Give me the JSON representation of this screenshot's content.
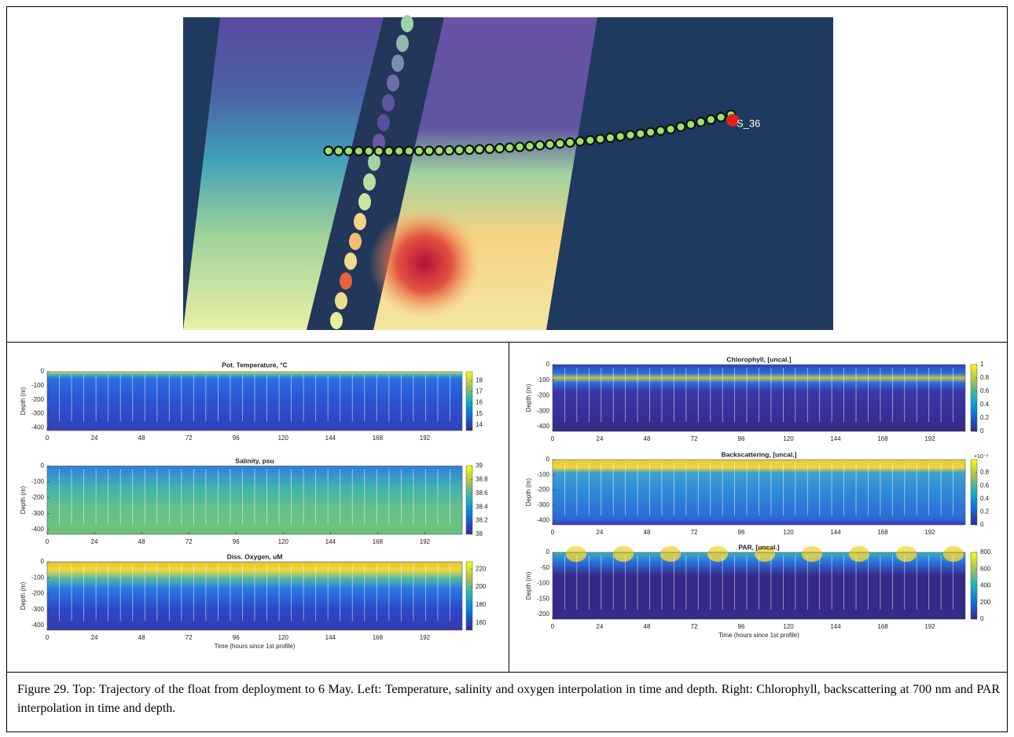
{
  "map": {
    "marker_label": "S_36"
  },
  "chart_data": [
    {
      "type": "heatmap",
      "title": "Pot. Temperature, °C",
      "y_label": "Depth (m)",
      "xlim": [
        0,
        211
      ],
      "xticks": [
        0,
        24,
        48,
        72,
        96,
        120,
        144,
        168,
        192
      ],
      "ylim": [
        -420,
        0
      ],
      "yticks": [
        0,
        -100,
        -200,
        -300,
        -400
      ],
      "clim": [
        13.5,
        18.8
      ],
      "cticks": [
        14,
        15,
        16,
        17,
        18
      ]
    },
    {
      "type": "heatmap",
      "title": "Salinity, psu",
      "y_label": "Depth (m)",
      "xlim": [
        0,
        211
      ],
      "xticks": [
        0,
        24,
        48,
        72,
        96,
        120,
        144,
        168,
        192
      ],
      "ylim": [
        -430,
        0
      ],
      "yticks": [
        0,
        -100,
        -200,
        -300,
        -400
      ],
      "clim": [
        38,
        39
      ],
      "cticks": [
        38,
        38.2,
        38.4,
        38.6,
        38.8,
        39
      ]
    },
    {
      "type": "heatmap",
      "title": "Diss. Oxygen, uM",
      "y_label": "Depth (m)",
      "x_label": "Time (hours since 1st profile)",
      "xlim": [
        0,
        211
      ],
      "xticks": [
        0,
        24,
        48,
        72,
        96,
        120,
        144,
        168,
        192
      ],
      "ylim": [
        -430,
        0
      ],
      "yticks": [
        0,
        -100,
        -200,
        -300,
        -400
      ],
      "clim": [
        152,
        228
      ],
      "cticks": [
        160,
        180,
        200,
        220
      ]
    },
    {
      "type": "heatmap",
      "title": "Chlorophyll, [uncal.]",
      "y_label": "Depth (m)",
      "xlim": [
        0,
        210
      ],
      "xticks": [
        0,
        24,
        48,
        72,
        96,
        120,
        144,
        168,
        192
      ],
      "ylim": [
        -430,
        0
      ],
      "yticks": [
        0,
        -100,
        -200,
        -300,
        -400
      ],
      "clim": [
        0,
        1
      ],
      "cticks": [
        0,
        0.2,
        0.4,
        0.6,
        0.8,
        1
      ]
    },
    {
      "type": "heatmap",
      "title": "Backscattering, [uncal.]",
      "y_label": "Depth (m)",
      "xlim": [
        0,
        210
      ],
      "xticks": [
        0,
        24,
        48,
        72,
        96,
        120,
        144,
        168,
        192
      ],
      "ylim": [
        -430,
        0
      ],
      "yticks": [
        0,
        -100,
        -200,
        -300,
        -400
      ],
      "clim": [
        0,
        1
      ],
      "cticks": [
        0,
        0.2,
        0.4,
        0.6,
        0.8
      ],
      "colorbar_label": "×10⁻³"
    },
    {
      "type": "heatmap",
      "title": "PAR, [uncal.]",
      "y_label": "Depth (m)",
      "x_label": "Time (hours since 1st profile)",
      "xlim": [
        0,
        210
      ],
      "xticks": [
        0,
        24,
        48,
        72,
        96,
        120,
        144,
        168,
        192
      ],
      "ylim": [
        -215,
        0
      ],
      "yticks": [
        0,
        -50,
        -100,
        -150,
        -200
      ],
      "clim": [
        0,
        800
      ],
      "cticks": [
        0,
        200,
        400,
        600,
        800
      ]
    }
  ],
  "caption": "Figure 29. Top: Trajectory of the float from deployment to 6 May. Left: Temperature, salinity and oxygen interpolation in time and depth. Right: Chlorophyll, backscattering at 700 nm and PAR interpolation in time and depth."
}
